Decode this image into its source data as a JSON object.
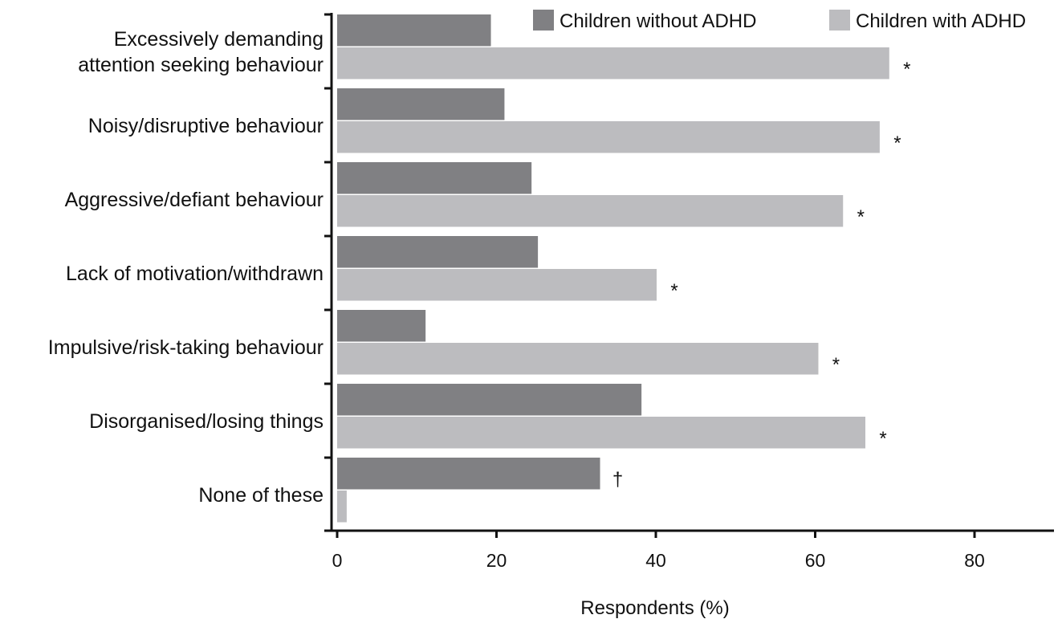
{
  "chart_data": {
    "type": "bar",
    "orientation": "horizontal",
    "categories": [
      [
        "Excessively demanding",
        "attention seeking behaviour"
      ],
      [
        "Noisy/disruptive behaviour"
      ],
      [
        "Aggressive/defiant behaviour"
      ],
      [
        "Lack of motivation/withdrawn"
      ],
      [
        "Impulsive/risk-taking behaviour"
      ],
      [
        "Disorganised/losing things"
      ],
      [
        "None of these"
      ]
    ],
    "series": [
      {
        "name": "Children without ADHD",
        "color": "#808083",
        "values": [
          19.3,
          21.0,
          24.4,
          25.2,
          11.1,
          38.2,
          33.0
        ],
        "annotations": [
          "",
          "",
          "",
          "",
          "",
          "",
          "†"
        ]
      },
      {
        "name": "Children with ADHD",
        "color": "#bcbcbf",
        "values": [
          69.3,
          68.1,
          63.5,
          40.1,
          60.4,
          66.3,
          1.2
        ],
        "annotations": [
          "*",
          "*",
          "*",
          "*",
          "*",
          "*",
          ""
        ]
      }
    ],
    "xlabel": "Respondents (%)",
    "ylabel": "",
    "xlim": [
      0,
      90
    ],
    "xticks": [
      0,
      20,
      40,
      60,
      80
    ],
    "legend_position": "top-right",
    "grid": false
  }
}
